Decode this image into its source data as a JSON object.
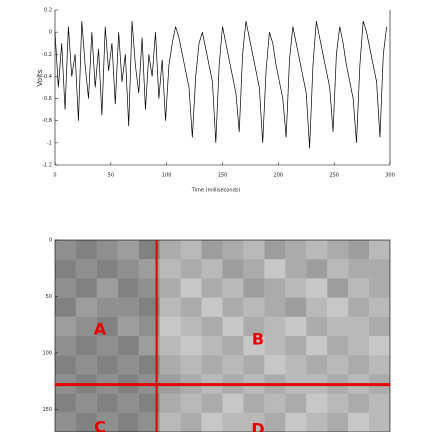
{
  "chart_data": [
    {
      "type": "line",
      "x_label": "Time (milliseconds)",
      "y_label": "Volts",
      "color": "#000000",
      "x": [
        0,
        3,
        6,
        9,
        12,
        15,
        18,
        21,
        24,
        27,
        30,
        33,
        36,
        39,
        42,
        45,
        48,
        51,
        54,
        57,
        60,
        63,
        66,
        69,
        72,
        75,
        78,
        81,
        84,
        87,
        90,
        93,
        96,
        99,
        102,
        105,
        108,
        111,
        114,
        117,
        120,
        123,
        126,
        129,
        132,
        135,
        138,
        141,
        144,
        147,
        150,
        153,
        156,
        159,
        162,
        165,
        168,
        171,
        174,
        177,
        180,
        183,
        186,
        189,
        192,
        195,
        198,
        201,
        204,
        207,
        210,
        213,
        216,
        219,
        222,
        225,
        228,
        231,
        234,
        237,
        240,
        243,
        246,
        249,
        252,
        255,
        258,
        261,
        264,
        267,
        270,
        273,
        276,
        279,
        282,
        285,
        288,
        291,
        294,
        297
      ],
      "values": [
        0.0,
        -0.5,
        -0.1,
        -0.7,
        0.05,
        -0.4,
        -0.2,
        -0.8,
        0.1,
        -0.3,
        -0.6,
        0.0,
        -0.5,
        -0.15,
        -0.75,
        0.05,
        -0.35,
        -0.1,
        -0.65,
        0.0,
        -0.45,
        -0.2,
        -0.85,
        0.1,
        -0.3,
        -0.55,
        -0.05,
        -0.7,
        -0.2,
        -0.4,
        0.0,
        -0.6,
        -0.25,
        -0.8,
        -0.3,
        -0.1,
        0.05,
        -0.05,
        -0.2,
        -0.35,
        -0.5,
        -0.95,
        -0.4,
        -0.1,
        0.0,
        -0.15,
        -0.3,
        -0.45,
        -1.0,
        -0.3,
        0.05,
        -0.1,
        -0.25,
        -0.4,
        -0.55,
        -0.9,
        -0.2,
        0.1,
        -0.05,
        -0.2,
        -0.35,
        -0.5,
        -1.0,
        -0.35,
        0.0,
        -0.1,
        -0.3,
        -0.45,
        -0.6,
        -0.95,
        -0.25,
        0.05,
        -0.1,
        -0.25,
        -0.4,
        -0.55,
        -1.05,
        -0.3,
        0.1,
        -0.05,
        -0.2,
        -0.35,
        -0.5,
        -0.9,
        -0.2,
        0.05,
        -0.1,
        -0.3,
        -0.45,
        -0.6,
        -1.0,
        -0.3,
        0.1,
        0.0,
        -0.15,
        -0.3,
        -0.45,
        -0.95,
        -0.2,
        0.05
      ],
      "xlim": [
        0,
        300
      ],
      "xticks": [
        0,
        50,
        100,
        150,
        200,
        250,
        300
      ],
      "ylim": [
        -1.2,
        0.2
      ],
      "yticks": [
        -1.2,
        -1,
        -0.8,
        -0.6,
        -0.4,
        -0.2,
        0,
        0.2
      ]
    },
    {
      "type": "heatmap",
      "color": "#000000",
      "line_color": "#e60000",
      "xlim": [
        0,
        300
      ],
      "ylim": [
        0,
        170
      ],
      "yticks": [
        0,
        50,
        100,
        150
      ],
      "vlines": [
        91
      ],
      "hlines": [
        128
      ],
      "annotations": [
        "A",
        "B",
        "C",
        "D"
      ],
      "matrix": [
        [
          0.8,
          0.9,
          0.8,
          0.7,
          0.9,
          0.6,
          0.5,
          0.7,
          0.6,
          0.5,
          0.7,
          0.6,
          0.5,
          0.6,
          0.7,
          0.5
        ],
        [
          0.9,
          0.8,
          0.9,
          0.8,
          0.7,
          0.5,
          0.6,
          0.5,
          0.7,
          0.6,
          0.4,
          0.6,
          0.7,
          0.5,
          0.6,
          0.6
        ],
        [
          0.8,
          0.9,
          0.7,
          0.9,
          0.8,
          0.6,
          0.4,
          0.6,
          0.5,
          0.7,
          0.6,
          0.5,
          0.4,
          0.7,
          0.5,
          0.6
        ],
        [
          0.9,
          0.7,
          0.8,
          0.8,
          0.9,
          0.5,
          0.6,
          0.4,
          0.6,
          0.5,
          0.6,
          0.7,
          0.5,
          0.4,
          0.6,
          0.5
        ],
        [
          0.7,
          0.8,
          0.9,
          0.7,
          0.8,
          0.4,
          0.5,
          0.6,
          0.4,
          0.6,
          0.5,
          0.4,
          0.6,
          0.5,
          0.5,
          0.6
        ],
        [
          0.8,
          0.9,
          0.8,
          0.9,
          0.7,
          0.5,
          0.4,
          0.5,
          0.6,
          0.4,
          0.5,
          0.6,
          0.4,
          0.6,
          0.5,
          0.4
        ],
        [
          0.9,
          0.8,
          0.9,
          0.8,
          0.9,
          0.6,
          0.5,
          0.6,
          0.5,
          0.6,
          0.4,
          0.5,
          0.6,
          0.5,
          0.6,
          0.5
        ],
        [
          0.8,
          0.9,
          0.8,
          0.9,
          0.8,
          0.7,
          0.6,
          0.5,
          0.6,
          0.5,
          0.6,
          0.5,
          0.5,
          0.6,
          0.5,
          0.6
        ],
        [
          0.9,
          0.8,
          0.9,
          0.8,
          0.9,
          0.6,
          0.5,
          0.6,
          0.4,
          0.6,
          0.5,
          0.6,
          0.4,
          0.5,
          0.6,
          0.5
        ],
        [
          0.8,
          0.9,
          0.8,
          0.9,
          0.8,
          0.5,
          0.6,
          0.4,
          0.5,
          0.5,
          0.6,
          0.4,
          0.5,
          0.6,
          0.4,
          0.5
        ]
      ]
    }
  ]
}
